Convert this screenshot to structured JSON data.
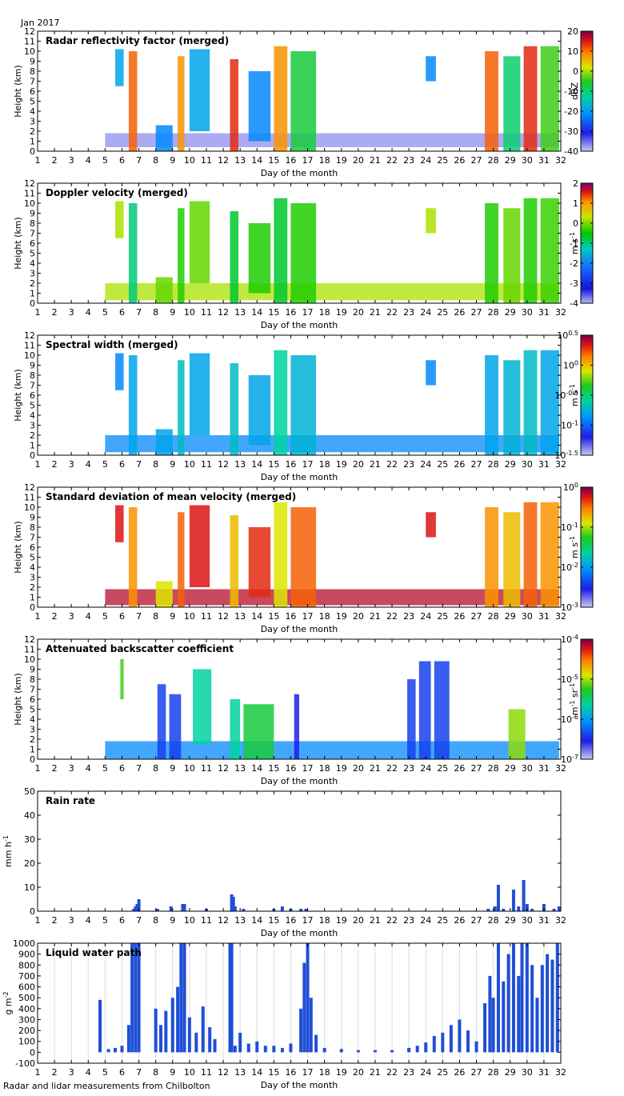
{
  "header": {
    "month_label": "Jan 2017"
  },
  "footer": {
    "source": "Radar and lidar measurements from Chilbolton"
  },
  "chart_data": [
    {
      "type": "heatmap",
      "title": "Radar reflectivity factor (merged)",
      "xlabel": "Day of the month",
      "ylabel": "Height (km)",
      "xlim": [
        1,
        32
      ],
      "ylim": [
        0,
        12
      ],
      "x_ticks": [
        1,
        2,
        3,
        4,
        5,
        6,
        7,
        8,
        9,
        10,
        11,
        12,
        13,
        14,
        15,
        16,
        17,
        18,
        19,
        20,
        21,
        22,
        23,
        24,
        25,
        26,
        27,
        28,
        29,
        30,
        31,
        32
      ],
      "y_ticks": [
        0,
        1,
        2,
        3,
        4,
        5,
        6,
        7,
        8,
        9,
        10,
        11,
        12
      ],
      "colorbar": {
        "label": "dBZ",
        "scale": "linear",
        "range": [
          -40,
          20
        ],
        "ticks": [
          "-40",
          "-30",
          "-20",
          "-10",
          "0",
          "10",
          "20"
        ]
      },
      "cloud_layers": [
        {
          "x0": 5.6,
          "x1": 6.1,
          "y0": 6.5,
          "y1": 10.2,
          "v": 0.35
        },
        {
          "x0": 6.4,
          "x1": 6.9,
          "y0": 0,
          "y1": 10.0,
          "v": 0.85
        },
        {
          "x0": 8.0,
          "x1": 9.0,
          "y0": 0,
          "y1": 2.6,
          "v": 0.3
        },
        {
          "x0": 9.3,
          "x1": 9.7,
          "y0": 0,
          "y1": 9.5,
          "v": 0.8
        },
        {
          "x0": 10.0,
          "x1": 11.2,
          "y0": 2.0,
          "y1": 10.2,
          "v": 0.35
        },
        {
          "x0": 12.4,
          "x1": 12.9,
          "y0": 0,
          "y1": 9.2,
          "v": 0.9
        },
        {
          "x0": 13.5,
          "x1": 14.8,
          "y0": 1.0,
          "y1": 8.0,
          "v": 0.3
        },
        {
          "x0": 15.0,
          "x1": 15.8,
          "y0": 0,
          "y1": 10.5,
          "v": 0.8
        },
        {
          "x0": 16.0,
          "x1": 17.5,
          "y0": 0,
          "y1": 10.0,
          "v": 0.55
        },
        {
          "x0": 24.0,
          "x1": 24.6,
          "y0": 7.0,
          "y1": 9.5,
          "v": 0.3
        },
        {
          "x0": 27.5,
          "x1": 28.3,
          "y0": 0,
          "y1": 10.0,
          "v": 0.85
        },
        {
          "x0": 28.6,
          "x1": 29.6,
          "y0": 0,
          "y1": 9.5,
          "v": 0.5
        },
        {
          "x0": 29.8,
          "x1": 30.6,
          "y0": 0,
          "y1": 10.5,
          "v": 0.9
        },
        {
          "x0": 30.8,
          "x1": 31.9,
          "y0": 0,
          "y1": 10.5,
          "v": 0.6
        }
      ],
      "boundary_layer": {
        "x0": 5.0,
        "x1": 31.9,
        "y0": 0.4,
        "y1": 1.8,
        "v": 0.05
      }
    },
    {
      "type": "heatmap",
      "title": "Doppler velocity (merged)",
      "xlabel": "Day of the month",
      "ylabel": "Height (km)",
      "xlim": [
        1,
        32
      ],
      "ylim": [
        0,
        12
      ],
      "x_ticks": [
        1,
        2,
        3,
        4,
        5,
        6,
        7,
        8,
        9,
        10,
        11,
        12,
        13,
        14,
        15,
        16,
        17,
        18,
        19,
        20,
        21,
        22,
        23,
        24,
        25,
        26,
        27,
        28,
        29,
        30,
        31,
        32
      ],
      "y_ticks": [
        0,
        1,
        2,
        3,
        4,
        5,
        6,
        7,
        8,
        9,
        10,
        11,
        12
      ],
      "colorbar": {
        "label": "m s",
        "label_sup": "-1",
        "scale": "linear",
        "range": [
          -4,
          2
        ],
        "ticks": [
          "-4",
          "-3",
          "-2",
          "-1",
          "0",
          "1",
          "2"
        ]
      },
      "cloud_layers": [
        {
          "x0": 5.6,
          "x1": 6.1,
          "y0": 6.5,
          "y1": 10.2,
          "v": 0.7
        },
        {
          "x0": 6.4,
          "x1": 6.9,
          "y0": 0,
          "y1": 10.0,
          "v": 0.5
        },
        {
          "x0": 8.0,
          "x1": 9.0,
          "y0": 0,
          "y1": 2.6,
          "v": 0.65
        },
        {
          "x0": 9.3,
          "x1": 9.7,
          "y0": 0,
          "y1": 9.5,
          "v": 0.6
        },
        {
          "x0": 10.0,
          "x1": 11.2,
          "y0": 2.0,
          "y1": 10.2,
          "v": 0.65
        },
        {
          "x0": 12.4,
          "x1": 12.9,
          "y0": 0,
          "y1": 9.2,
          "v": 0.55
        },
        {
          "x0": 13.5,
          "x1": 14.8,
          "y0": 1.0,
          "y1": 8.0,
          "v": 0.6
        },
        {
          "x0": 15.0,
          "x1": 15.8,
          "y0": 0,
          "y1": 10.5,
          "v": 0.55
        },
        {
          "x0": 16.0,
          "x1": 17.5,
          "y0": 0,
          "y1": 10.0,
          "v": 0.6
        },
        {
          "x0": 24.0,
          "x1": 24.6,
          "y0": 7.0,
          "y1": 9.5,
          "v": 0.7
        },
        {
          "x0": 27.5,
          "x1": 28.3,
          "y0": 0,
          "y1": 10.0,
          "v": 0.6
        },
        {
          "x0": 28.6,
          "x1": 29.6,
          "y0": 0,
          "y1": 9.5,
          "v": 0.65
        },
        {
          "x0": 29.8,
          "x1": 30.6,
          "y0": 0,
          "y1": 10.5,
          "v": 0.6
        },
        {
          "x0": 30.8,
          "x1": 31.9,
          "y0": 0,
          "y1": 10.5,
          "v": 0.62
        }
      ],
      "boundary_layer": {
        "x0": 5.0,
        "x1": 31.9,
        "y0": 0.3,
        "y1": 2.0,
        "v": 0.7
      }
    },
    {
      "type": "heatmap",
      "title": "Spectral width (merged)",
      "xlabel": "Day of the month",
      "ylabel": "Height (km)",
      "xlim": [
        1,
        32
      ],
      "ylim": [
        0,
        12
      ],
      "x_ticks": [
        1,
        2,
        3,
        4,
        5,
        6,
        7,
        8,
        9,
        10,
        11,
        12,
        13,
        14,
        15,
        16,
        17,
        18,
        19,
        20,
        21,
        22,
        23,
        24,
        25,
        26,
        27,
        28,
        29,
        30,
        31,
        32
      ],
      "y_ticks": [
        0,
        1,
        2,
        3,
        4,
        5,
        6,
        7,
        8,
        9,
        10,
        11,
        12
      ],
      "colorbar": {
        "label": "m s",
        "label_sup": "-1",
        "scale": "log",
        "ticks": [
          [
            "10",
            "-1.5"
          ],
          [
            "10",
            "-1"
          ],
          [
            "10",
            "-0.5"
          ],
          [
            "10",
            "0"
          ],
          [
            "10",
            "0.5"
          ]
        ]
      },
      "cloud_layers": [
        {
          "x0": 5.6,
          "x1": 6.1,
          "y0": 6.5,
          "y1": 10.2,
          "v": 0.3
        },
        {
          "x0": 6.4,
          "x1": 6.9,
          "y0": 0,
          "y1": 10.0,
          "v": 0.35
        },
        {
          "x0": 8.0,
          "x1": 9.0,
          "y0": 0,
          "y1": 2.6,
          "v": 0.35
        },
        {
          "x0": 9.3,
          "x1": 9.7,
          "y0": 0,
          "y1": 9.5,
          "v": 0.4
        },
        {
          "x0": 10.0,
          "x1": 11.2,
          "y0": 2.0,
          "y1": 10.2,
          "v": 0.35
        },
        {
          "x0": 12.4,
          "x1": 12.9,
          "y0": 0,
          "y1": 9.2,
          "v": 0.4
        },
        {
          "x0": 13.5,
          "x1": 14.8,
          "y0": 1.0,
          "y1": 8.0,
          "v": 0.35
        },
        {
          "x0": 15.0,
          "x1": 15.8,
          "y0": 0,
          "y1": 10.5,
          "v": 0.45
        },
        {
          "x0": 16.0,
          "x1": 17.5,
          "y0": 0,
          "y1": 10.0,
          "v": 0.38
        },
        {
          "x0": 24.0,
          "x1": 24.6,
          "y0": 7.0,
          "y1": 9.5,
          "v": 0.3
        },
        {
          "x0": 27.5,
          "x1": 28.3,
          "y0": 0,
          "y1": 10.0,
          "v": 0.35
        },
        {
          "x0": 28.6,
          "x1": 29.6,
          "y0": 0,
          "y1": 9.5,
          "v": 0.38
        },
        {
          "x0": 29.8,
          "x1": 30.6,
          "y0": 0,
          "y1": 10.5,
          "v": 0.4
        },
        {
          "x0": 30.8,
          "x1": 31.9,
          "y0": 0,
          "y1": 10.5,
          "v": 0.35
        }
      ],
      "boundary_layer": {
        "x0": 5.0,
        "x1": 31.9,
        "y0": 0.3,
        "y1": 2.0,
        "v": 0.3
      }
    },
    {
      "type": "heatmap",
      "title": "Standard deviation of mean velocity (merged)",
      "xlabel": "Day of the month",
      "ylabel": "Height (km)",
      "xlim": [
        1,
        32
      ],
      "ylim": [
        0,
        12
      ],
      "x_ticks": [
        1,
        2,
        3,
        4,
        5,
        6,
        7,
        8,
        9,
        10,
        11,
        12,
        13,
        14,
        15,
        16,
        17,
        18,
        19,
        20,
        21,
        22,
        23,
        24,
        25,
        26,
        27,
        28,
        29,
        30,
        31,
        32
      ],
      "y_ticks": [
        0,
        1,
        2,
        3,
        4,
        5,
        6,
        7,
        8,
        9,
        10,
        11,
        12
      ],
      "colorbar": {
        "label": "m s",
        "label_sup": "-1",
        "scale": "log",
        "ticks": [
          [
            "10",
            "-3"
          ],
          [
            "10",
            "-2"
          ],
          [
            "10",
            "-1"
          ],
          [
            "10",
            "0"
          ]
        ]
      },
      "cloud_layers": [
        {
          "x0": 5.6,
          "x1": 6.1,
          "y0": 6.5,
          "y1": 10.2,
          "v": 0.92
        },
        {
          "x0": 6.4,
          "x1": 6.9,
          "y0": 0,
          "y1": 10.0,
          "v": 0.8
        },
        {
          "x0": 8.0,
          "x1": 9.0,
          "y0": 0,
          "y1": 2.6,
          "v": 0.7
        },
        {
          "x0": 9.3,
          "x1": 9.7,
          "y0": 0,
          "y1": 9.5,
          "v": 0.85
        },
        {
          "x0": 10.0,
          "x1": 11.2,
          "y0": 2.0,
          "y1": 10.2,
          "v": 0.92
        },
        {
          "x0": 12.4,
          "x1": 12.9,
          "y0": 0,
          "y1": 9.2,
          "v": 0.75
        },
        {
          "x0": 13.5,
          "x1": 14.8,
          "y0": 1.0,
          "y1": 8.0,
          "v": 0.9
        },
        {
          "x0": 15.0,
          "x1": 15.8,
          "y0": 0,
          "y1": 10.5,
          "v": 0.7
        },
        {
          "x0": 16.0,
          "x1": 17.5,
          "y0": 0,
          "y1": 10.0,
          "v": 0.85
        },
        {
          "x0": 24.0,
          "x1": 24.6,
          "y0": 7.0,
          "y1": 9.5,
          "v": 0.92
        },
        {
          "x0": 27.5,
          "x1": 28.3,
          "y0": 0,
          "y1": 10.0,
          "v": 0.8
        },
        {
          "x0": 28.6,
          "x1": 29.6,
          "y0": 0,
          "y1": 9.5,
          "v": 0.75
        },
        {
          "x0": 29.8,
          "x1": 30.6,
          "y0": 0,
          "y1": 10.5,
          "v": 0.85
        },
        {
          "x0": 30.8,
          "x1": 31.9,
          "y0": 0,
          "y1": 10.5,
          "v": 0.8
        }
      ],
      "boundary_layer": {
        "x0": 5.0,
        "x1": 31.9,
        "y0": 0.2,
        "y1": 1.8,
        "v": 0.95
      }
    },
    {
      "type": "heatmap",
      "title": "Attenuated backscatter coefficient",
      "xlabel": "Day of the month",
      "ylabel": "Height (km)",
      "xlim": [
        1,
        32
      ],
      "ylim": [
        0,
        12
      ],
      "x_ticks": [
        1,
        2,
        3,
        4,
        5,
        6,
        7,
        8,
        9,
        10,
        11,
        12,
        13,
        14,
        15,
        16,
        17,
        18,
        19,
        20,
        21,
        22,
        23,
        24,
        25,
        26,
        27,
        28,
        29,
        30,
        31,
        32
      ],
      "y_ticks": [
        0,
        1,
        2,
        3,
        4,
        5,
        6,
        7,
        8,
        9,
        10,
        11,
        12
      ],
      "colorbar": {
        "label": "m",
        "label_sup": "-1",
        "label2": " sr",
        "label2_sup": "-1",
        "scale": "log",
        "ticks": [
          [
            "10",
            "-7"
          ],
          [
            "10",
            "-6"
          ],
          [
            "10",
            "-5"
          ],
          [
            "10",
            "-4"
          ]
        ]
      },
      "cloud_layers": [
        {
          "x0": 5.9,
          "x1": 6.1,
          "y0": 6.0,
          "y1": 10.0,
          "v": 0.6
        },
        {
          "x0": 8.1,
          "x1": 8.6,
          "y0": 0,
          "y1": 7.5,
          "v": 0.2
        },
        {
          "x0": 8.8,
          "x1": 9.5,
          "y0": 0,
          "y1": 6.5,
          "v": 0.2
        },
        {
          "x0": 10.2,
          "x1": 11.3,
          "y0": 1.5,
          "y1": 9.0,
          "v": 0.45
        },
        {
          "x0": 12.4,
          "x1": 13.0,
          "y0": 0,
          "y1": 6.0,
          "v": 0.45
        },
        {
          "x0": 13.2,
          "x1": 15.0,
          "y0": 0,
          "y1": 5.5,
          "v": 0.55
        },
        {
          "x0": 16.2,
          "x1": 16.5,
          "y0": 0,
          "y1": 6.5,
          "v": 0.15
        },
        {
          "x0": 22.9,
          "x1": 23.4,
          "y0": 0,
          "y1": 8.0,
          "v": 0.2
        },
        {
          "x0": 23.6,
          "x1": 24.3,
          "y0": 0,
          "y1": 9.8,
          "v": 0.2
        },
        {
          "x0": 24.5,
          "x1": 25.4,
          "y0": 0,
          "y1": 9.8,
          "v": 0.2
        },
        {
          "x0": 28.9,
          "x1": 29.9,
          "y0": 0,
          "y1": 5.0,
          "v": 0.65
        }
      ],
      "boundary_layer": {
        "x0": 5.0,
        "x1": 31.9,
        "y0": 0,
        "y1": 1.8,
        "v": 0.3
      }
    },
    {
      "type": "bar",
      "title": "Rain rate",
      "xlabel": "Day of the month",
      "ylabel": "mm h",
      "ylabel_sup": "-1",
      "xlim": [
        1,
        32
      ],
      "ylim": [
        0,
        50
      ],
      "x_ticks": [
        1,
        2,
        3,
        4,
        5,
        6,
        7,
        8,
        9,
        10,
        11,
        12,
        13,
        14,
        15,
        16,
        17,
        18,
        19,
        20,
        21,
        22,
        23,
        24,
        25,
        26,
        27,
        28,
        29,
        30,
        31,
        32
      ],
      "y_ticks": [
        0,
        10,
        20,
        30,
        40,
        50
      ],
      "x": [
        6.7,
        6.8,
        6.9,
        7.0,
        8.1,
        8.9,
        9.6,
        9.7,
        11.0,
        12.5,
        12.6,
        12.7,
        13.2,
        15.0,
        15.5,
        16.0,
        16.6,
        16.9,
        27.7,
        28.1,
        28.3,
        28.6,
        29.2,
        29.5,
        29.8,
        30.0,
        30.3,
        31.0,
        31.6,
        31.9
      ],
      "values": [
        1,
        2,
        3,
        5,
        1,
        2,
        3,
        3,
        1,
        7,
        6,
        2,
        1,
        1,
        2,
        1,
        1,
        1,
        1,
        2,
        11,
        1,
        9,
        2,
        13,
        3,
        1,
        3,
        1,
        2
      ]
    },
    {
      "type": "bar",
      "title": "Liquid water path",
      "xlabel": "Day of the month",
      "ylabel": "g m",
      "ylabel_sup": "-2",
      "xlim": [
        1,
        32
      ],
      "ylim": [
        -100,
        1000
      ],
      "x_ticks": [
        1,
        2,
        3,
        4,
        5,
        6,
        7,
        8,
        9,
        10,
        11,
        12,
        13,
        14,
        15,
        16,
        17,
        18,
        19,
        20,
        21,
        22,
        23,
        24,
        25,
        26,
        27,
        28,
        29,
        30,
        31,
        32
      ],
      "y_ticks": [
        -100,
        0,
        100,
        200,
        300,
        400,
        500,
        600,
        700,
        800,
        900,
        1000
      ],
      "x": [
        4.7,
        5.2,
        5.6,
        6.0,
        6.4,
        6.6,
        6.8,
        7.0,
        8.0,
        8.3,
        8.6,
        9.0,
        9.3,
        9.5,
        9.7,
        10.0,
        10.4,
        10.8,
        11.2,
        11.5,
        12.4,
        12.5,
        12.7,
        13.0,
        13.5,
        14.0,
        14.5,
        15.0,
        15.5,
        16.0,
        16.6,
        16.8,
        17.0,
        17.2,
        17.5,
        18.0,
        19.0,
        20.0,
        21.0,
        22.0,
        23.0,
        23.5,
        24.0,
        24.5,
        25.0,
        25.5,
        26.0,
        26.5,
        27.0,
        27.5,
        27.8,
        28.0,
        28.3,
        28.6,
        28.9,
        29.2,
        29.5,
        29.7,
        30.0,
        30.3,
        30.6,
        30.9,
        31.2,
        31.5,
        31.8
      ],
      "values": [
        480,
        30,
        40,
        60,
        250,
        1000,
        1000,
        1000,
        400,
        250,
        380,
        500,
        600,
        1000,
        1000,
        320,
        180,
        420,
        230,
        120,
        1000,
        1000,
        60,
        180,
        80,
        100,
        60,
        60,
        40,
        80,
        400,
        820,
        1000,
        500,
        160,
        40,
        30,
        20,
        20,
        20,
        40,
        60,
        90,
        150,
        180,
        250,
        300,
        200,
        100,
        450,
        700,
        500,
        1000,
        650,
        900,
        1000,
        700,
        1000,
        1000,
        800,
        500,
        800,
        900,
        850,
        1000
      ]
    }
  ]
}
